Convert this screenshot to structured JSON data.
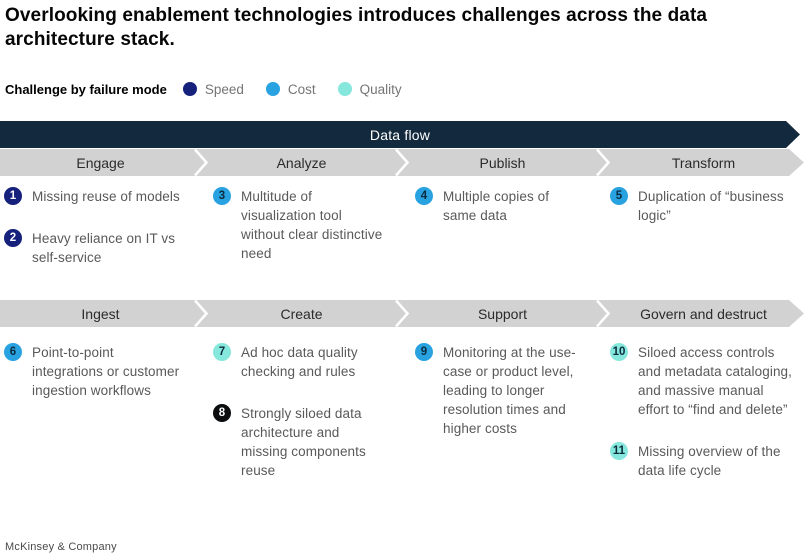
{
  "title": "Overlooking enablement technologies introduces challenges across the data architecture stack.",
  "legend": {
    "label": "Challenge by failure mode",
    "items": [
      {
        "name": "Speed",
        "category": "speed"
      },
      {
        "name": "Cost",
        "category": "cost"
      },
      {
        "name": "Quality",
        "category": "quality"
      }
    ]
  },
  "flow_banner": "Data flow",
  "rows": [
    {
      "stages": [
        "Engage",
        "Analyze",
        "Publish",
        "Transform"
      ],
      "columns": [
        [
          {
            "num": "1",
            "category": "speed",
            "text": "Missing reuse of models"
          },
          {
            "num": "2",
            "category": "speed",
            "text": "Heavy reliance on IT vs self-service"
          }
        ],
        [
          {
            "num": "3",
            "category": "cost",
            "text": "Multitude of visualization tool without clear distinctive need"
          }
        ],
        [
          {
            "num": "4",
            "category": "cost",
            "text": "Multiple copies of same data"
          }
        ],
        [
          {
            "num": "5",
            "category": "cost",
            "text": "Duplication of “business logic”"
          }
        ]
      ]
    },
    {
      "stages": [
        "Ingest",
        "Create",
        "Support",
        "Govern and destruct"
      ],
      "columns": [
        [
          {
            "num": "6",
            "category": "cost",
            "text": "Point-to-point integrations or customer ingestion workflows"
          }
        ],
        [
          {
            "num": "7",
            "category": "quality",
            "text": "Ad hoc data quality checking and rules"
          },
          {
            "num": "8",
            "category": "black",
            "text": "Strongly siloed data architecture and missing components reuse"
          }
        ],
        [
          {
            "num": "9",
            "category": "cost",
            "text": "Monitoring at the use-case or product level, leading to longer resolution times and higher costs"
          }
        ],
        [
          {
            "num": "10",
            "category": "quality",
            "text": "Siloed access controls and metadata cataloging, and massive manual effort to “find and delete”"
          },
          {
            "num": "11",
            "category": "quality",
            "text": "Missing overview of the data life cycle"
          }
        ]
      ]
    }
  ],
  "footer": "McKinsey & Company",
  "colors": {
    "banner_bg": "#13293D",
    "bar_bg": "#D2D2D2",
    "categories": {
      "speed": {
        "bg": "#16217C",
        "fg": "#FFFFFF"
      },
      "cost": {
        "bg": "#29A2E2",
        "fg": "#0A2B3D"
      },
      "quality": {
        "bg": "#86E8DC",
        "fg": "#0A2B3D"
      },
      "black": {
        "bg": "#0B0D0E",
        "fg": "#FFFFFF"
      }
    }
  }
}
